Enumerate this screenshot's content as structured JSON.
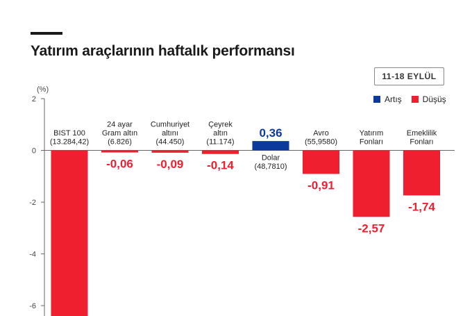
{
  "title": "Yatırım araçlarının haftalık performansı",
  "date_range": "11-18 EYLÜL",
  "unit": "(%)",
  "colors": {
    "up": "#0c3a9c",
    "down": "#ef1f30",
    "axis": "#666666"
  },
  "legend": [
    {
      "label": "Artış",
      "color": "#0c3a9c"
    },
    {
      "label": "Düşüş",
      "color": "#ef1f30"
    }
  ],
  "chart_data": {
    "type": "bar",
    "ylim": [
      -6.4,
      2
    ],
    "yticks": [
      "2",
      "0",
      "-2",
      "-4",
      "-6"
    ],
    "grid": false,
    "legend_position": "top-right",
    "categories": [
      {
        "lines": [
          "BIST 100",
          "(13.284,42)"
        ],
        "value": -7.5,
        "value_label": ""
      },
      {
        "lines": [
          "24 ayar",
          "Gram altın",
          "(6.826)"
        ],
        "value": -0.06,
        "value_label": "-0,06"
      },
      {
        "lines": [
          "Cumhuriyet",
          "altını",
          "(44.450)"
        ],
        "value": -0.09,
        "value_label": "-0,09"
      },
      {
        "lines": [
          "Çeyrek",
          "altın",
          "(11.174)"
        ],
        "value": -0.14,
        "value_label": "-0,14"
      },
      {
        "lines": [
          "Dolar",
          "(48,7810)"
        ],
        "value": 0.36,
        "value_label": "0,36"
      },
      {
        "lines": [
          "Avro",
          "(55,9580)"
        ],
        "value": -0.91,
        "value_label": "-0,91"
      },
      {
        "lines": [
          "Yatırım",
          "Fonları"
        ],
        "value": -2.57,
        "value_label": "-2,57"
      },
      {
        "lines": [
          "Emeklilik",
          "Fonları"
        ],
        "value": -1.74,
        "value_label": "-1,74"
      }
    ]
  }
}
